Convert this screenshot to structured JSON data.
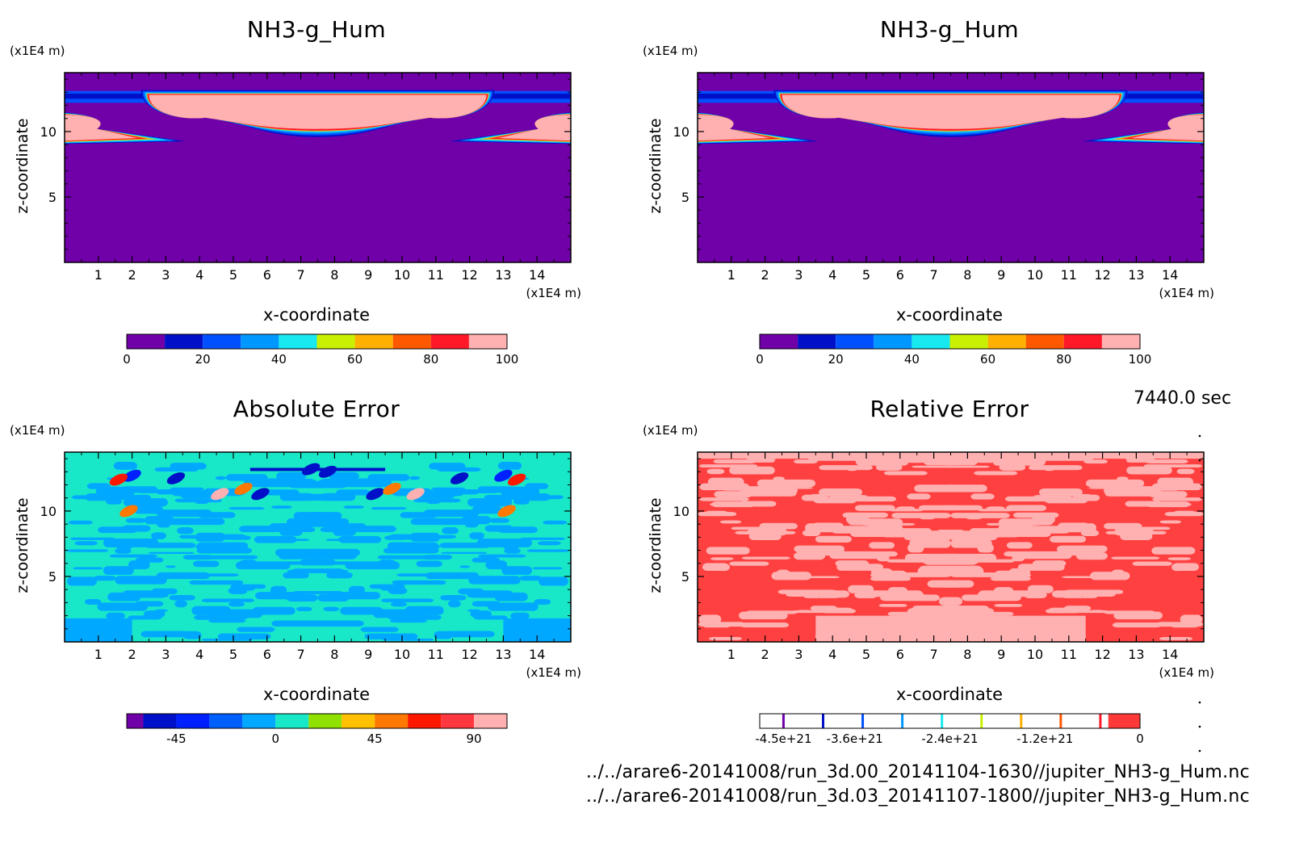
{
  "time_label": "7440.0 sec",
  "footer": [
    "../../arare6-20141008/run_3d.00_20141104-1630//jupiter_NH3-g_Hum.nc",
    "../../arare6-20141008/run_3d.03_20141107-1800//jupiter_NH3-g_Hum.nc"
  ],
  "chart_data": [
    {
      "type": "heatmap",
      "title": "NH3-g_Hum",
      "xlabel": "x-coordinate",
      "ylabel": "z-coordinate",
      "x_unit": "(x1E4 m)",
      "y_unit": "(x1E4 m)",
      "xlim": [
        0,
        15
      ],
      "ylim": [
        0,
        14.5
      ],
      "x_ticks": [
        1,
        2,
        3,
        4,
        5,
        6,
        7,
        8,
        9,
        10,
        11,
        12,
        13,
        14
      ],
      "y_ticks": [
        5,
        10
      ],
      "colorbar": {
        "levels": [
          0,
          10,
          20,
          30,
          40,
          50,
          60,
          70,
          80,
          90,
          100
        ],
        "tick_labels": [
          "0",
          "20",
          "40",
          "60",
          "80",
          "100"
        ],
        "colors": [
          "#7000a8",
          "#0010c8",
          "#0050ff",
          "#0098ff",
          "#18e8f0",
          "#c8f000",
          "#ffb000",
          "#ff5800",
          "#ff1828",
          "#ffb0b0"
        ]
      },
      "background_level": 0,
      "features": [
        {
          "name": "upper cloud layer",
          "x_range": [
            2.5,
            12.5
          ],
          "z_range": [
            10.2,
            12.8
          ],
          "value": 100
        },
        {
          "name": "left lobe",
          "x_range": [
            0,
            3.2
          ],
          "z_range": [
            9.6,
            10.8
          ],
          "value": 100
        },
        {
          "name": "right lobe",
          "x_range": [
            11.8,
            15
          ],
          "z_range": [
            9.6,
            10.8
          ],
          "value": 100
        }
      ]
    },
    {
      "type": "heatmap",
      "title": "NH3-g_Hum",
      "xlabel": "x-coordinate",
      "ylabel": "z-coordinate",
      "x_unit": "(x1E4 m)",
      "y_unit": "(x1E4 m)",
      "xlim": [
        0,
        15
      ],
      "ylim": [
        0,
        14.5
      ],
      "x_ticks": [
        1,
        2,
        3,
        4,
        5,
        6,
        7,
        8,
        9,
        10,
        11,
        12,
        13,
        14
      ],
      "y_ticks": [
        5,
        10
      ],
      "colorbar": {
        "levels": [
          0,
          10,
          20,
          30,
          40,
          50,
          60,
          70,
          80,
          90,
          100
        ],
        "tick_labels": [
          "0",
          "20",
          "40",
          "60",
          "80",
          "100"
        ],
        "colors": [
          "#7000a8",
          "#0010c8",
          "#0050ff",
          "#0098ff",
          "#18e8f0",
          "#c8f000",
          "#ffb000",
          "#ff5800",
          "#ff1828",
          "#ffb0b0"
        ]
      },
      "background_level": 0,
      "features": [
        {
          "name": "upper cloud layer",
          "x_range": [
            2.5,
            12.5
          ],
          "z_range": [
            10.2,
            12.8
          ],
          "value": 100
        },
        {
          "name": "left lobe",
          "x_range": [
            0,
            3.2
          ],
          "z_range": [
            9.6,
            10.8
          ],
          "value": 100
        },
        {
          "name": "right lobe",
          "x_range": [
            11.8,
            15
          ],
          "z_range": [
            9.6,
            10.8
          ],
          "value": 100
        }
      ]
    },
    {
      "type": "heatmap",
      "title": "Absolute Error",
      "xlabel": "x-coordinate",
      "ylabel": "z-coordinate",
      "x_unit": "(x1E4 m)",
      "y_unit": "(x1E4 m)",
      "xlim": [
        0,
        15
      ],
      "ylim": [
        0,
        14.5
      ],
      "x_ticks": [
        1,
        2,
        3,
        4,
        5,
        6,
        7,
        8,
        9,
        10,
        11,
        12,
        13,
        14
      ],
      "y_ticks": [
        5,
        10
      ],
      "colorbar": {
        "levels": [
          -67.5,
          -60,
          -45,
          -30,
          -15,
          0,
          15,
          30,
          45,
          60,
          75,
          90,
          105
        ],
        "tick_labels": [
          "-45",
          "0",
          "45",
          "90"
        ],
        "tick_values": [
          -45,
          0,
          45,
          90
        ],
        "colors": [
          "#7000a8",
          "#0010c8",
          "#0020ff",
          "#0060ff",
          "#00a8ff",
          "#18e8c8",
          "#90e000",
          "#ffc000",
          "#ff7800",
          "#ff1800",
          "#ff3840",
          "#ffb0b0"
        ]
      },
      "background_levels": [
        -15,
        0
      ]
    },
    {
      "type": "heatmap",
      "title": "Relative Error",
      "xlabel": "x-coordinate",
      "ylabel": "z-coordinate",
      "x_unit": "(x1E4 m)",
      "y_unit": "(x1E4 m)",
      "xlim": [
        0,
        15
      ],
      "ylim": [
        0,
        14.5
      ],
      "x_ticks": [
        1,
        2,
        3,
        4,
        5,
        6,
        7,
        8,
        9,
        10,
        11,
        12,
        13,
        14
      ],
      "y_ticks": [
        5,
        10
      ],
      "colorbar": {
        "range": [
          -4.8e+21,
          0
        ],
        "tick_labels": [
          "-4.5e+21",
          "-3.6e+21",
          "-2.4e+21",
          "-1.2e+21",
          "0"
        ],
        "tick_values": [
          -4.5e+21,
          -3.6e+21,
          -2.4e+21,
          -1.2e+21,
          0
        ],
        "line_colors": [
          "#7000a8",
          "#0010c8",
          "#0050ff",
          "#0098ff",
          "#18e8f0",
          "#c8f000",
          "#ffb000",
          "#ff5800",
          "#ff1828"
        ],
        "top_color": "#ff3838"
      },
      "background_colors": [
        "#ff4040",
        "#ffb0b0"
      ]
    }
  ]
}
